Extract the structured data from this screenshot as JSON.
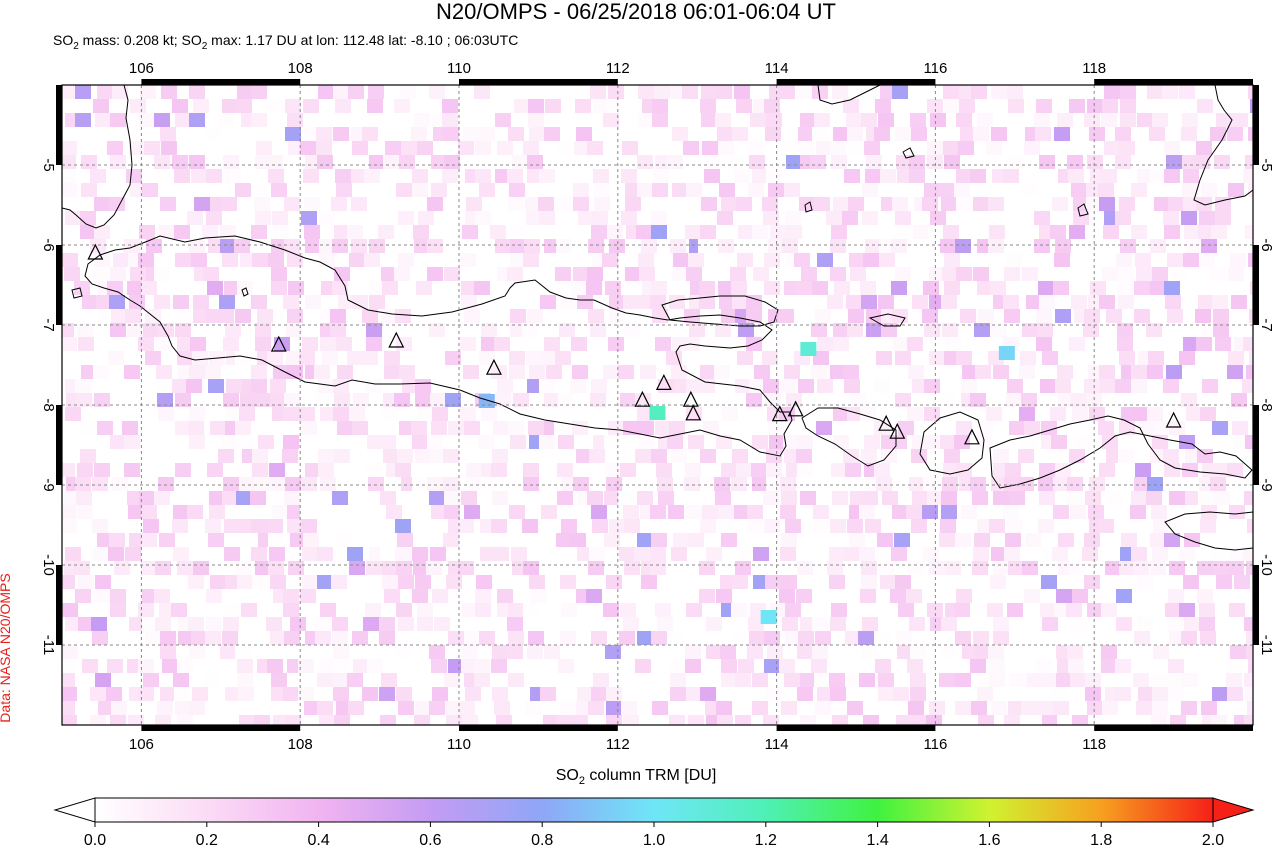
{
  "header": {
    "title": "N20/OMPS - 06/25/2018 06:01-06:04 UT",
    "subtitle_parts": [
      "SO",
      "2",
      " mass: 0.208 kt; SO",
      "2",
      " max: 1.17 DU at lon: 112.48 lat: -8.10 ; 06:03UTC"
    ]
  },
  "credit": "Data: NASA N20/OMPS",
  "map": {
    "lon_range": [
      105.0,
      120.0
    ],
    "lat_range": [
      -12.0,
      -4.0
    ],
    "lon_ticks": [
      "106",
      "108",
      "110",
      "112",
      "114",
      "116",
      "118"
    ],
    "lat_ticks": [
      "-5",
      "-6",
      "-7",
      "-8",
      "-9",
      "-10",
      "-11"
    ],
    "volcanoes": [
      {
        "lon": 105.42,
        "lat": -6.1
      },
      {
        "lon": 107.73,
        "lat": -7.25
      },
      {
        "lon": 109.21,
        "lat": -7.2
      },
      {
        "lon": 110.44,
        "lat": -7.54
      },
      {
        "lon": 112.31,
        "lat": -7.94
      },
      {
        "lon": 112.58,
        "lat": -7.73
      },
      {
        "lon": 112.92,
        "lat": -7.94
      },
      {
        "lon": 112.95,
        "lat": -8.11
      },
      {
        "lon": 114.04,
        "lat": -8.12
      },
      {
        "lon": 114.24,
        "lat": -8.06
      },
      {
        "lon": 115.38,
        "lat": -8.24
      },
      {
        "lon": 115.52,
        "lat": -8.34
      },
      {
        "lon": 116.46,
        "lat": -8.41
      },
      {
        "lon": 119.0,
        "lat": -8.2
      }
    ],
    "notable_pixels": [
      {
        "lon": 112.5,
        "lat": -8.1,
        "value": 1.17
      },
      {
        "lon": 114.4,
        "lat": -7.3,
        "value": 1.1
      },
      {
        "lon": 113.9,
        "lat": -10.65,
        "value": 1.0
      },
      {
        "lon": 116.9,
        "lat": -7.35,
        "value": 0.95
      },
      {
        "lon": 110.35,
        "lat": -7.95,
        "value": 0.85
      }
    ]
  },
  "colorbar": {
    "label_parts": [
      "SO",
      "2",
      " column TRM [DU]"
    ],
    "min": 0.0,
    "max": 2.0,
    "ticks": [
      "0.0",
      "0.2",
      "0.4",
      "0.6",
      "0.8",
      "1.0",
      "1.2",
      "1.4",
      "1.6",
      "1.8",
      "2.0"
    ]
  }
}
